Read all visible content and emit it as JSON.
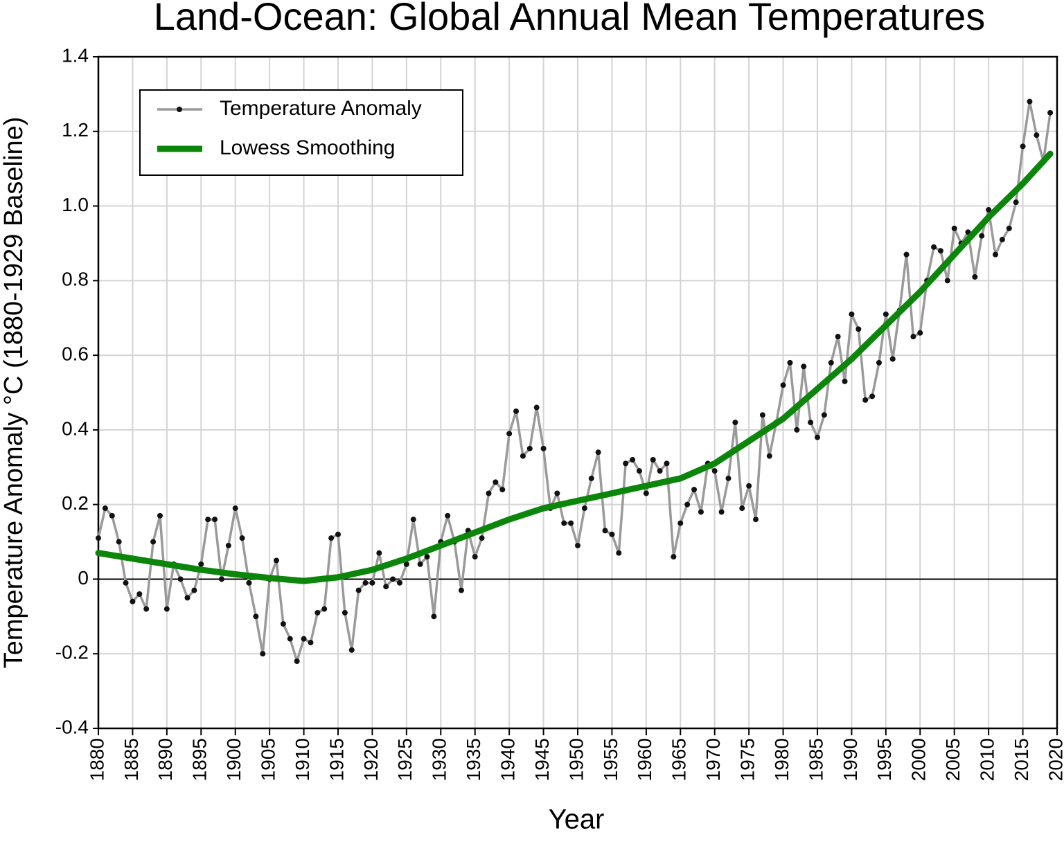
{
  "chart_data": {
    "type": "line",
    "title": "Land-Ocean: Global Annual Mean Temperatures",
    "x_label": "Year",
    "y_label": "Temperature Anomaly °C (1880-1929 Baseline)",
    "x": [
      1880,
      1881,
      1882,
      1883,
      1884,
      1885,
      1886,
      1887,
      1888,
      1889,
      1890,
      1891,
      1892,
      1893,
      1894,
      1895,
      1896,
      1897,
      1898,
      1899,
      1900,
      1901,
      1902,
      1903,
      1904,
      1905,
      1906,
      1907,
      1908,
      1909,
      1910,
      1911,
      1912,
      1913,
      1914,
      1915,
      1916,
      1917,
      1918,
      1919,
      1920,
      1921,
      1922,
      1923,
      1924,
      1925,
      1926,
      1927,
      1928,
      1929,
      1930,
      1931,
      1932,
      1933,
      1934,
      1935,
      1936,
      1937,
      1938,
      1939,
      1940,
      1941,
      1942,
      1943,
      1944,
      1945,
      1946,
      1947,
      1948,
      1949,
      1950,
      1951,
      1952,
      1953,
      1954,
      1955,
      1956,
      1957,
      1958,
      1959,
      1960,
      1961,
      1962,
      1963,
      1964,
      1965,
      1966,
      1967,
      1968,
      1969,
      1970,
      1971,
      1972,
      1973,
      1974,
      1975,
      1976,
      1977,
      1978,
      1979,
      1980,
      1981,
      1982,
      1983,
      1984,
      1985,
      1986,
      1987,
      1988,
      1989,
      1990,
      1991,
      1992,
      1993,
      1994,
      1995,
      1996,
      1997,
      1998,
      1999,
      2000,
      2001,
      2002,
      2003,
      2004,
      2005,
      2006,
      2007,
      2008,
      2009,
      2010,
      2011,
      2012,
      2013,
      2014,
      2015,
      2016,
      2017,
      2018,
      2019
    ],
    "series": [
      {
        "name": "Temperature Anomaly",
        "color": "#9a9a9a",
        "marker_color": "#111111",
        "values": [
          0.11,
          0.19,
          0.17,
          0.1,
          -0.01,
          -0.06,
          -0.04,
          -0.08,
          0.1,
          0.17,
          -0.08,
          0.04,
          0.0,
          -0.05,
          -0.03,
          0.04,
          0.16,
          0.16,
          0.0,
          0.09,
          0.19,
          0.11,
          -0.01,
          -0.1,
          -0.2,
          0.0,
          0.05,
          -0.12,
          -0.16,
          -0.22,
          -0.16,
          -0.17,
          -0.09,
          -0.08,
          0.11,
          0.12,
          -0.09,
          -0.19,
          -0.03,
          -0.01,
          -0.01,
          0.07,
          -0.02,
          0.0,
          -0.01,
          0.04,
          0.16,
          0.04,
          0.06,
          -0.1,
          0.1,
          0.17,
          0.1,
          -0.03,
          0.13,
          0.06,
          0.11,
          0.23,
          0.26,
          0.24,
          0.39,
          0.45,
          0.33,
          0.35,
          0.46,
          0.35,
          0.19,
          0.23,
          0.15,
          0.15,
          0.09,
          0.19,
          0.27,
          0.34,
          0.13,
          0.12,
          0.07,
          0.31,
          0.32,
          0.29,
          0.23,
          0.32,
          0.29,
          0.31,
          0.06,
          0.15,
          0.2,
          0.24,
          0.18,
          0.31,
          0.29,
          0.18,
          0.27,
          0.42,
          0.19,
          0.25,
          0.16,
          0.44,
          0.33,
          0.42,
          0.52,
          0.58,
          0.4,
          0.57,
          0.42,
          0.38,
          0.44,
          0.58,
          0.65,
          0.53,
          0.71,
          0.67,
          0.48,
          0.49,
          0.58,
          0.71,
          0.59,
          0.72,
          0.87,
          0.65,
          0.66,
          0.8,
          0.89,
          0.88,
          0.8,
          0.94,
          0.9,
          0.93,
          0.81,
          0.92,
          0.99,
          0.87,
          0.91,
          0.94,
          1.01,
          1.16,
          1.28,
          1.19,
          1.12,
          1.25
        ]
      },
      {
        "name": "Lowess Smoothing",
        "color": "#0b860b",
        "x": [
          1880,
          1885,
          1890,
          1895,
          1900,
          1905,
          1910,
          1915,
          1920,
          1925,
          1930,
          1935,
          1940,
          1945,
          1950,
          1955,
          1960,
          1965,
          1970,
          1975,
          1980,
          1985,
          1990,
          1995,
          2000,
          2005,
          2010,
          2015,
          2019
        ],
        "values": [
          0.07,
          0.055,
          0.04,
          0.025,
          0.013,
          0.003,
          -0.005,
          0.005,
          0.025,
          0.055,
          0.09,
          0.125,
          0.16,
          0.19,
          0.21,
          0.23,
          0.25,
          0.27,
          0.31,
          0.37,
          0.43,
          0.51,
          0.59,
          0.68,
          0.77,
          0.87,
          0.97,
          1.06,
          1.14
        ]
      }
    ],
    "xlim": [
      1880,
      2020
    ],
    "xticks": [
      1880,
      1885,
      1890,
      1895,
      1900,
      1905,
      1910,
      1915,
      1920,
      1925,
      1930,
      1935,
      1940,
      1945,
      1950,
      1955,
      1960,
      1965,
      1970,
      1975,
      1980,
      1985,
      1990,
      1995,
      2000,
      2005,
      2010,
      2015,
      2020
    ],
    "ylim": [
      -0.4,
      1.4
    ],
    "yticks": [
      -0.4,
      -0.2,
      0,
      0.2,
      0.4,
      0.6,
      0.8,
      {
        "value": 1,
        "label": "1.0"
      },
      1.2,
      1.4
    ],
    "grid": true,
    "legend": "upper left"
  }
}
